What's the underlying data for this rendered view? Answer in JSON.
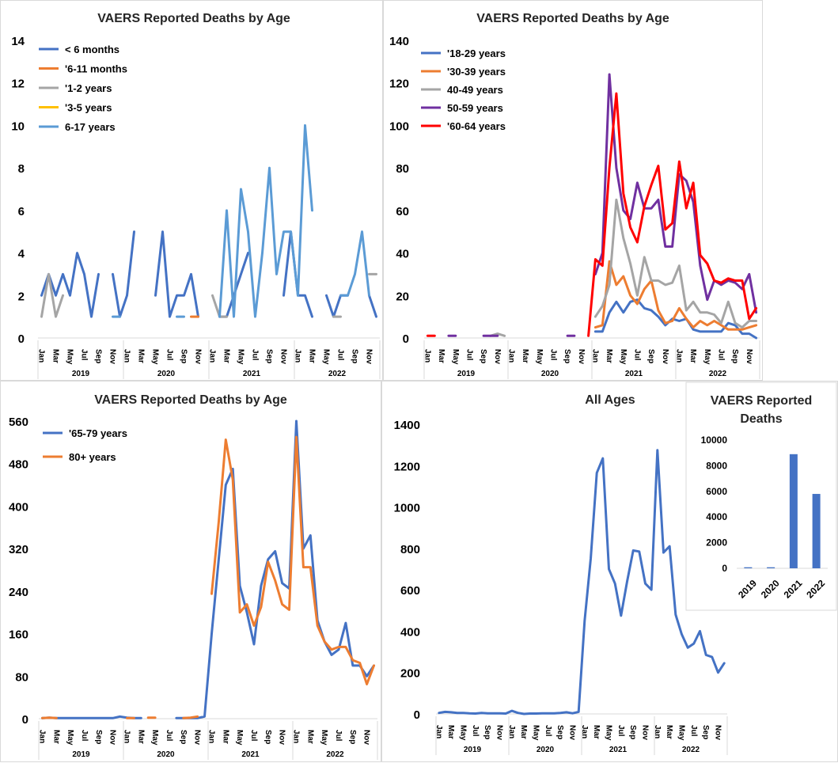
{
  "chart_data": [
    {
      "type": "line",
      "title": "VAERS Reported Deaths by Age",
      "ylim": [
        0,
        14
      ],
      "yticks": [
        0,
        2,
        4,
        6,
        8,
        10,
        12,
        14
      ],
      "years": [
        "2019",
        "2020",
        "2021",
        "2022"
      ],
      "month_labels": [
        "Jan",
        "Mar",
        "May",
        "Jul",
        "Sep",
        "Nov"
      ],
      "legend_position": "top-left",
      "series": [
        {
          "name": "< 6 months",
          "color": "#4472c4",
          "values": [
            2,
            3,
            2,
            3,
            2,
            4,
            3,
            1,
            3,
            null,
            3,
            1,
            2,
            5,
            null,
            null,
            2,
            5,
            1,
            2,
            2,
            3,
            1,
            null,
            null,
            1,
            1,
            2,
            3,
            4,
            null,
            null,
            null,
            null,
            2,
            5,
            2,
            2,
            1,
            null,
            2,
            1,
            2,
            2,
            null,
            null,
            2,
            1
          ]
        },
        {
          "name": "'6-11 months",
          "color": "#ed7d31",
          "values": [
            null,
            null,
            null,
            null,
            null,
            null,
            null,
            null,
            null,
            null,
            null,
            null,
            null,
            null,
            null,
            null,
            null,
            null,
            null,
            null,
            null,
            1,
            1,
            null,
            null,
            null,
            null,
            null,
            null,
            null,
            null,
            null,
            null,
            null,
            null,
            null,
            null,
            null,
            null,
            null,
            null,
            null,
            null,
            null,
            null,
            null,
            null,
            null
          ]
        },
        {
          "name": "'1-2 years",
          "color": "#a5a5a5",
          "values": [
            1,
            3,
            1,
            2,
            null,
            null,
            null,
            null,
            null,
            null,
            null,
            null,
            null,
            null,
            null,
            null,
            null,
            null,
            null,
            null,
            null,
            null,
            2,
            null,
            2,
            1,
            1,
            null,
            null,
            null,
            null,
            null,
            null,
            null,
            null,
            null,
            null,
            null,
            null,
            null,
            null,
            1,
            1,
            null,
            null,
            null,
            3,
            3
          ]
        },
        {
          "name": "'3-5 years",
          "color": "#ffc000",
          "values": []
        },
        {
          "name": "6-17 years",
          "color": "#5b9bd5",
          "values": [
            null,
            null,
            null,
            null,
            null,
            null,
            null,
            null,
            null,
            null,
            1,
            1,
            null,
            null,
            null,
            null,
            null,
            null,
            null,
            1,
            1,
            null,
            null,
            null,
            null,
            1,
            6,
            1,
            7,
            5,
            1,
            4,
            8,
            3,
            5,
            5,
            2,
            10,
            6,
            null,
            null,
            null,
            2,
            2,
            3,
            5,
            2,
            null
          ]
        }
      ]
    },
    {
      "type": "line",
      "title": "VAERS Reported Deaths by Age",
      "ylim": [
        0,
        140
      ],
      "yticks": [
        0,
        20,
        40,
        60,
        80,
        100,
        120,
        140
      ],
      "years": [
        "2019",
        "2020",
        "2021",
        "2022"
      ],
      "month_labels": [
        "Jan",
        "Mar",
        "May",
        "Jul",
        "Sep",
        "Nov"
      ],
      "legend_position": "top-left",
      "series": [
        {
          "name": "'18-29 years",
          "color": "#4472c4",
          "values": [
            null,
            null,
            null,
            null,
            null,
            null,
            null,
            null,
            null,
            null,
            null,
            null,
            null,
            null,
            null,
            null,
            null,
            null,
            null,
            null,
            null,
            null,
            null,
            null,
            3,
            3,
            12,
            17,
            12,
            17,
            18,
            14,
            13,
            10,
            6,
            9,
            8,
            9,
            4,
            3,
            3,
            3,
            3,
            7,
            6,
            2,
            2,
            0
          ]
        },
        {
          "name": "'30-39 years",
          "color": "#ed7d31",
          "values": [
            null,
            null,
            null,
            null,
            null,
            null,
            null,
            null,
            null,
            null,
            null,
            null,
            null,
            null,
            null,
            null,
            null,
            null,
            null,
            null,
            null,
            null,
            null,
            null,
            5,
            6,
            36,
            25,
            29,
            20,
            16,
            23,
            27,
            13,
            7,
            8,
            14,
            9,
            5,
            8,
            6,
            8,
            6,
            4,
            4,
            4,
            5,
            6
          ]
        },
        {
          "name": "40-49 years",
          "color": "#a5a5a5",
          "values": [
            null,
            null,
            null,
            null,
            null,
            null,
            null,
            null,
            null,
            1,
            2,
            1,
            null,
            null,
            null,
            null,
            null,
            null,
            null,
            null,
            null,
            null,
            null,
            null,
            10,
            15,
            25,
            65,
            47,
            35,
            20,
            38,
            27,
            27,
            25,
            26,
            34,
            13,
            17,
            12,
            12,
            11,
            7,
            17,
            7,
            5,
            8,
            8
          ]
        },
        {
          "name": "50-59 years",
          "color": "#7030a0",
          "values": [
            null,
            1,
            null,
            1,
            1,
            null,
            null,
            null,
            1,
            1,
            1,
            null,
            null,
            null,
            null,
            null,
            null,
            null,
            null,
            null,
            1,
            1,
            null,
            null,
            30,
            40,
            124,
            80,
            60,
            56,
            73,
            61,
            61,
            65,
            43,
            43,
            77,
            74,
            64,
            34,
            18,
            27,
            25,
            27,
            26,
            23,
            30,
            12
          ]
        },
        {
          "name": "'60-64 years",
          "color": "#ff0000",
          "values": [
            1,
            1,
            null,
            null,
            null,
            null,
            null,
            null,
            null,
            1,
            null,
            1,
            null,
            1,
            null,
            null,
            null,
            null,
            null,
            null,
            null,
            1,
            null,
            1,
            37,
            34,
            80,
            115,
            68,
            52,
            45,
            62,
            72,
            81,
            51,
            54,
            83,
            61,
            73,
            39,
            35,
            27,
            26,
            28,
            27,
            27,
            9,
            14
          ]
        }
      ]
    },
    {
      "type": "line",
      "title": "VAERS Reported Deaths by Age",
      "ylim": [
        0,
        560
      ],
      "yticks": [
        0,
        80,
        160,
        240,
        320,
        400,
        480,
        560
      ],
      "years": [
        "2019",
        "2020",
        "2021",
        "2022"
      ],
      "month_labels": [
        "Jan",
        "Mar",
        "May",
        "Jul",
        "Sep",
        "Nov"
      ],
      "legend_position": "top-left",
      "series": [
        {
          "name": "'65-79 years",
          "color": "#4472c4",
          "values": [
            1,
            2,
            1,
            1,
            1,
            1,
            1,
            1,
            1,
            1,
            1,
            4,
            2,
            1,
            1,
            null,
            null,
            null,
            null,
            1,
            1,
            1,
            1,
            4,
            160,
            300,
            440,
            470,
            250,
            200,
            140,
            250,
            300,
            315,
            255,
            245,
            560,
            320,
            345,
            185,
            145,
            120,
            130,
            180,
            100,
            100,
            80,
            100
          ]
        },
        {
          "name": "80+ years",
          "color": "#ed7d31",
          "values": [
            1,
            2,
            1,
            null,
            null,
            null,
            null,
            null,
            null,
            null,
            null,
            null,
            1,
            1,
            null,
            2,
            2,
            null,
            null,
            null,
            1,
            2,
            4,
            null,
            235,
            370,
            525,
            450,
            200,
            215,
            175,
            210,
            295,
            260,
            215,
            205,
            530,
            285,
            285,
            175,
            145,
            130,
            135,
            135,
            110,
            105,
            65,
            100
          ]
        }
      ]
    },
    {
      "type": "line",
      "title": "All Ages",
      "ylim": [
        0,
        1400
      ],
      "yticks": [
        0,
        200,
        400,
        600,
        800,
        1000,
        1200,
        1400
      ],
      "years": [
        "2019",
        "2020",
        "2021",
        "2022"
      ],
      "month_labels": [
        "Jan",
        "Mar",
        "May",
        "Jul",
        "Sep",
        "Nov"
      ],
      "series": [
        {
          "name": "",
          "color": "#4472c4",
          "values": [
            5,
            10,
            8,
            5,
            5,
            3,
            2,
            5,
            3,
            3,
            3,
            2,
            15,
            5,
            0,
            2,
            2,
            3,
            3,
            3,
            5,
            8,
            3,
            10,
            450,
            750,
            1165,
            1235,
            700,
            630,
            475,
            640,
            790,
            785,
            630,
            600,
            1275,
            780,
            810,
            480,
            385,
            320,
            340,
            400,
            285,
            275,
            200,
            245
          ]
        }
      ],
      "inset": {
        "type": "bar",
        "title": "VAERS Reported Deaths",
        "categories": [
          "2019",
          "2020",
          "2021",
          "2022"
        ],
        "values": [
          80,
          80,
          8900,
          5800
        ],
        "ylim": [
          0,
          10000
        ],
        "yticks": [
          0,
          2000,
          4000,
          6000,
          8000,
          10000
        ],
        "color": "#4472c4"
      }
    }
  ]
}
